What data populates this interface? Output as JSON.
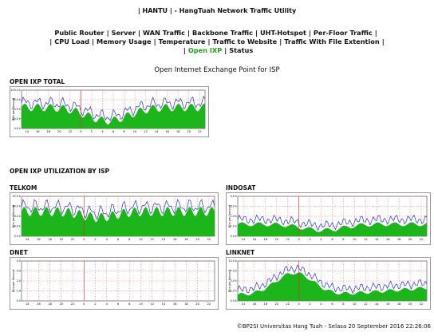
{
  "header": {
    "title": "| HANTU | - HangTuah Network Traffic Utility"
  },
  "nav": {
    "separator": "|",
    "active_item": [
      3,
      0
    ],
    "lines": [
      [
        "Public Router",
        "Server",
        "WAN Traffic",
        "Backbone Traffic",
        "UHT-Hotspot",
        "Per-Floor Traffic"
      ],
      [
        "CPU Load",
        "Memory Usage",
        "Temperature",
        "Traffic to Website",
        "Traffic With File Extention"
      ],
      [
        "Open IXP",
        "Status"
      ]
    ]
  },
  "subtitle": "Open Internet Exchange Point for ISP",
  "section": "OPEN IXP UTILIZATION BY ISP",
  "graphs": [
    {
      "title": "OPEN IXP TOTAL",
      "ylabel": "Bits per Second",
      "yticks": [
        "100.0 k",
        "75.0 k",
        "50.0 k",
        "25.0 k",
        "0.0 k"
      ],
      "xlabels": [
        "14",
        "16",
        "18",
        "20",
        "22",
        "0",
        "2",
        "4",
        "6",
        "8",
        "10",
        "12",
        "14",
        "16",
        "18",
        "20",
        "22"
      ]
    },
    {
      "title": "TELKOM",
      "ylabel": "Bits per Second",
      "yticks": [
        "32.0 k",
        "24.0 k",
        "16.0 k",
        "8.0 k",
        "0.0 k"
      ],
      "xlabels": [
        "14",
        "16",
        "18",
        "20",
        "22",
        "0",
        "2",
        "4",
        "6",
        "8",
        "10",
        "12",
        "14",
        "16",
        "18",
        "20",
        "22"
      ]
    },
    {
      "title": "INDOSAT",
      "ylabel": "Bits per Second",
      "yticks": [
        "4.0 k",
        "3.0 k",
        "2.0 k",
        "1.0 k",
        "0.0 k"
      ],
      "xlabels": [
        "14",
        "16",
        "18",
        "20",
        "22",
        "0",
        "2",
        "4",
        "6",
        "8",
        "10",
        "12",
        "14",
        "16",
        "18",
        "20",
        "22"
      ]
    },
    {
      "title": "DNET",
      "ylabel": "Bits per Second",
      "yticks": [
        "4.0",
        "3.0",
        "2.0",
        "1.0",
        "0.0"
      ],
      "xlabels": [
        "14",
        "16",
        "18",
        "20",
        "22",
        "0",
        "2",
        "4",
        "6",
        "8",
        "10",
        "12",
        "14",
        "16",
        "18",
        "20",
        "22"
      ]
    },
    {
      "title": "LINKNET",
      "ylabel": "Bits per Second",
      "yticks": [
        "10.0 k",
        "7.5 k",
        "5.0 k",
        "2.5 k",
        "0.0 k"
      ],
      "xlabels": [
        "14",
        "16",
        "18",
        "20",
        "22",
        "0",
        "2",
        "4",
        "6",
        "8",
        "10",
        "12",
        "14",
        "16",
        "18",
        "20",
        "22"
      ]
    }
  ],
  "footer": "©BP2SI Universitas Hang Tuah - Selasa 20 September 2016 22:26:06"
}
